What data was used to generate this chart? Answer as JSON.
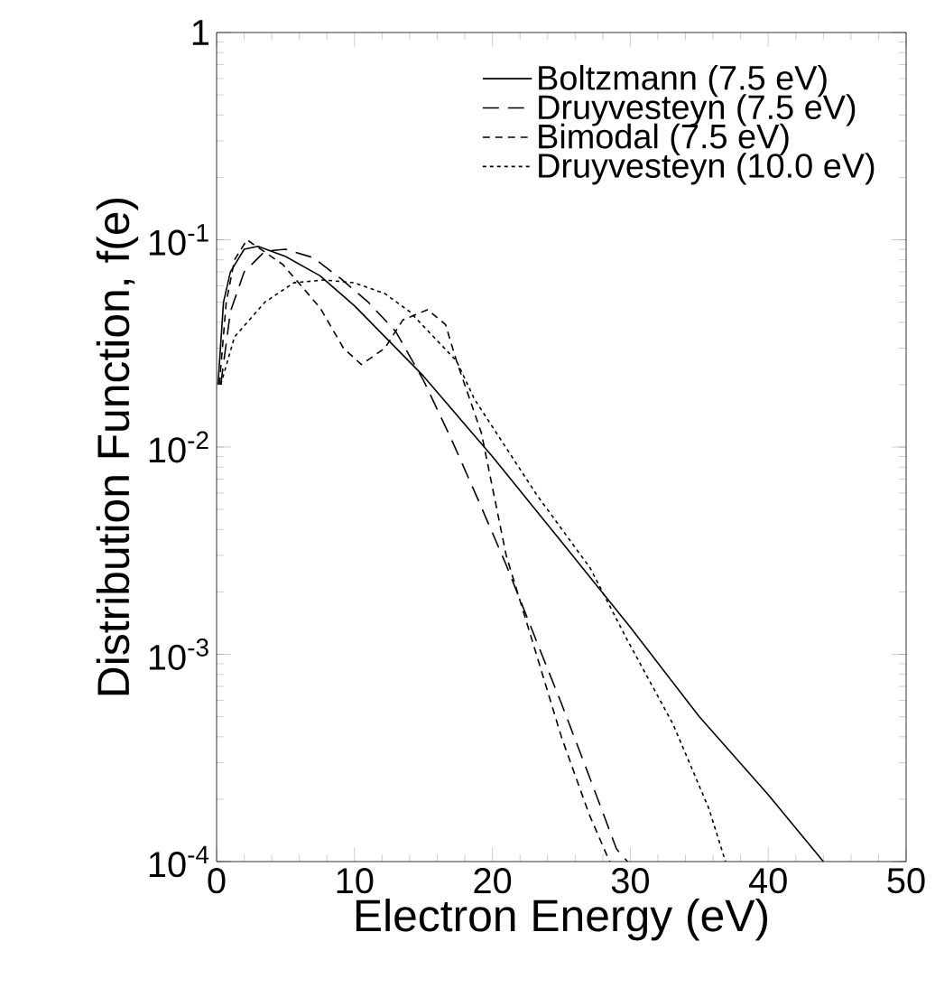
{
  "chart_data": {
    "type": "line",
    "xlabel": "Electron Energy (eV)",
    "ylabel": "Distribution Function, f(e)",
    "log": "y",
    "xlim": [
      0,
      50
    ],
    "ylim": [
      0.0001,
      1
    ],
    "xticks": [
      0,
      10,
      20,
      30,
      40,
      50
    ],
    "yticks": [
      {
        "value": 0.0001,
        "label": "10$^{-4}$"
      },
      {
        "value": 0.001,
        "label": "10$^{-3}$"
      },
      {
        "value": 0.01,
        "label": "10$^{-2}$"
      },
      {
        "value": 0.1,
        "label": "10$^{-1}$"
      },
      1
    ],
    "grid": false,
    "legend": "top right",
    "marker": "none",
    "series": [
      {
        "name": "Boltzmann (7.5 eV)",
        "color": "#000000",
        "line_style": "solid",
        "x": [
          0.1,
          0.5,
          1,
          2,
          3,
          5,
          7.5,
          10,
          15,
          20,
          25,
          30,
          35,
          40,
          44
        ],
        "values": [
          0.02,
          0.05,
          0.07,
          0.09,
          0.093,
          0.083,
          0.067,
          0.048,
          0.022,
          0.009,
          0.0035,
          0.00135,
          0.0005,
          0.00021,
          0.0001
        ]
      },
      {
        "name": "Druyvesteyn (7.5 eV)",
        "color": "#000000",
        "line_style": "dashed",
        "x": [
          0.3,
          1,
          2,
          3.5,
          5,
          7,
          9,
          11,
          13,
          15,
          17,
          19,
          21,
          23,
          25,
          27,
          29,
          29.8
        ],
        "values": [
          0.02,
          0.045,
          0.07,
          0.088,
          0.09,
          0.082,
          0.065,
          0.05,
          0.036,
          0.021,
          0.011,
          0.0055,
          0.0027,
          0.00125,
          0.00058,
          0.00026,
          0.000115,
          0.0001
        ]
      },
      {
        "name": "Bimodal (7.5 eV)",
        "color": "#000000",
        "line_style": "dashed",
        "x": [
          0.2,
          0.7,
          1.3,
          2.2,
          4.8,
          7.5,
          9.2,
          10.5,
          12.2,
          13.5,
          15.3,
          16.6,
          17.4,
          19.2,
          21,
          23,
          25,
          27,
          28.5
        ],
        "values": [
          0.02,
          0.05,
          0.08,
          0.1,
          0.076,
          0.047,
          0.03,
          0.025,
          0.03,
          0.041,
          0.046,
          0.039,
          0.026,
          0.0117,
          0.003,
          0.0011,
          0.0004,
          0.00017,
          0.0001
        ]
      },
      {
        "name": "Druyvesteyn (10.0 eV)",
        "color": "#000000",
        "line_style": "dotted",
        "x": [
          0.3,
          1.3,
          3.5,
          5.6,
          7.8,
          10,
          12.2,
          14,
          17.4,
          18.7,
          23.2,
          27.1,
          29.7,
          33.1,
          35.7,
          36.9
        ],
        "values": [
          0.02,
          0.034,
          0.05,
          0.062,
          0.064,
          0.062,
          0.055,
          0.045,
          0.026,
          0.017,
          0.0059,
          0.0026,
          0.0012,
          0.00046,
          0.00018,
          0.0001
        ]
      }
    ]
  }
}
